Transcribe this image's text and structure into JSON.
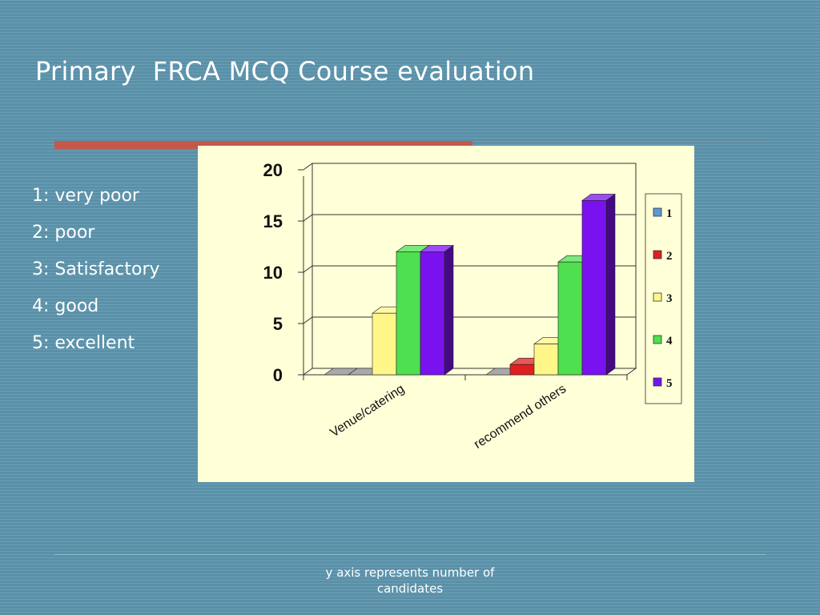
{
  "slide": {
    "title": "Primary  FRCA MCQ Course evaluation",
    "scale_items": [
      "1: very poor",
      "2: poor",
      "3: Satisfactory",
      "4: good",
      "5: excellent"
    ],
    "footnote": "y axis represents number of candidates"
  },
  "chart_data": {
    "type": "bar",
    "style": "3d-clustered",
    "categories": [
      "Venue/catering",
      "recommend others"
    ],
    "series": [
      {
        "name": "1",
        "color": "#5b9bd5",
        "values": [
          0,
          0
        ]
      },
      {
        "name": "2",
        "color": "#e02020",
        "values": [
          0,
          1
        ]
      },
      {
        "name": "3",
        "color": "#fff68a",
        "values": [
          6,
          3
        ]
      },
      {
        "name": "4",
        "color": "#4ee04e",
        "values": [
          12,
          11
        ]
      },
      {
        "name": "5",
        "color": "#7a12f0",
        "values": [
          12,
          17
        ]
      }
    ],
    "ylim": [
      0,
      20
    ],
    "yticks": [
      0,
      5,
      10,
      15,
      20
    ],
    "grid": true,
    "legend": "right",
    "background": "#ffffd8",
    "title": "",
    "xlabel": "",
    "ylabel": ""
  }
}
